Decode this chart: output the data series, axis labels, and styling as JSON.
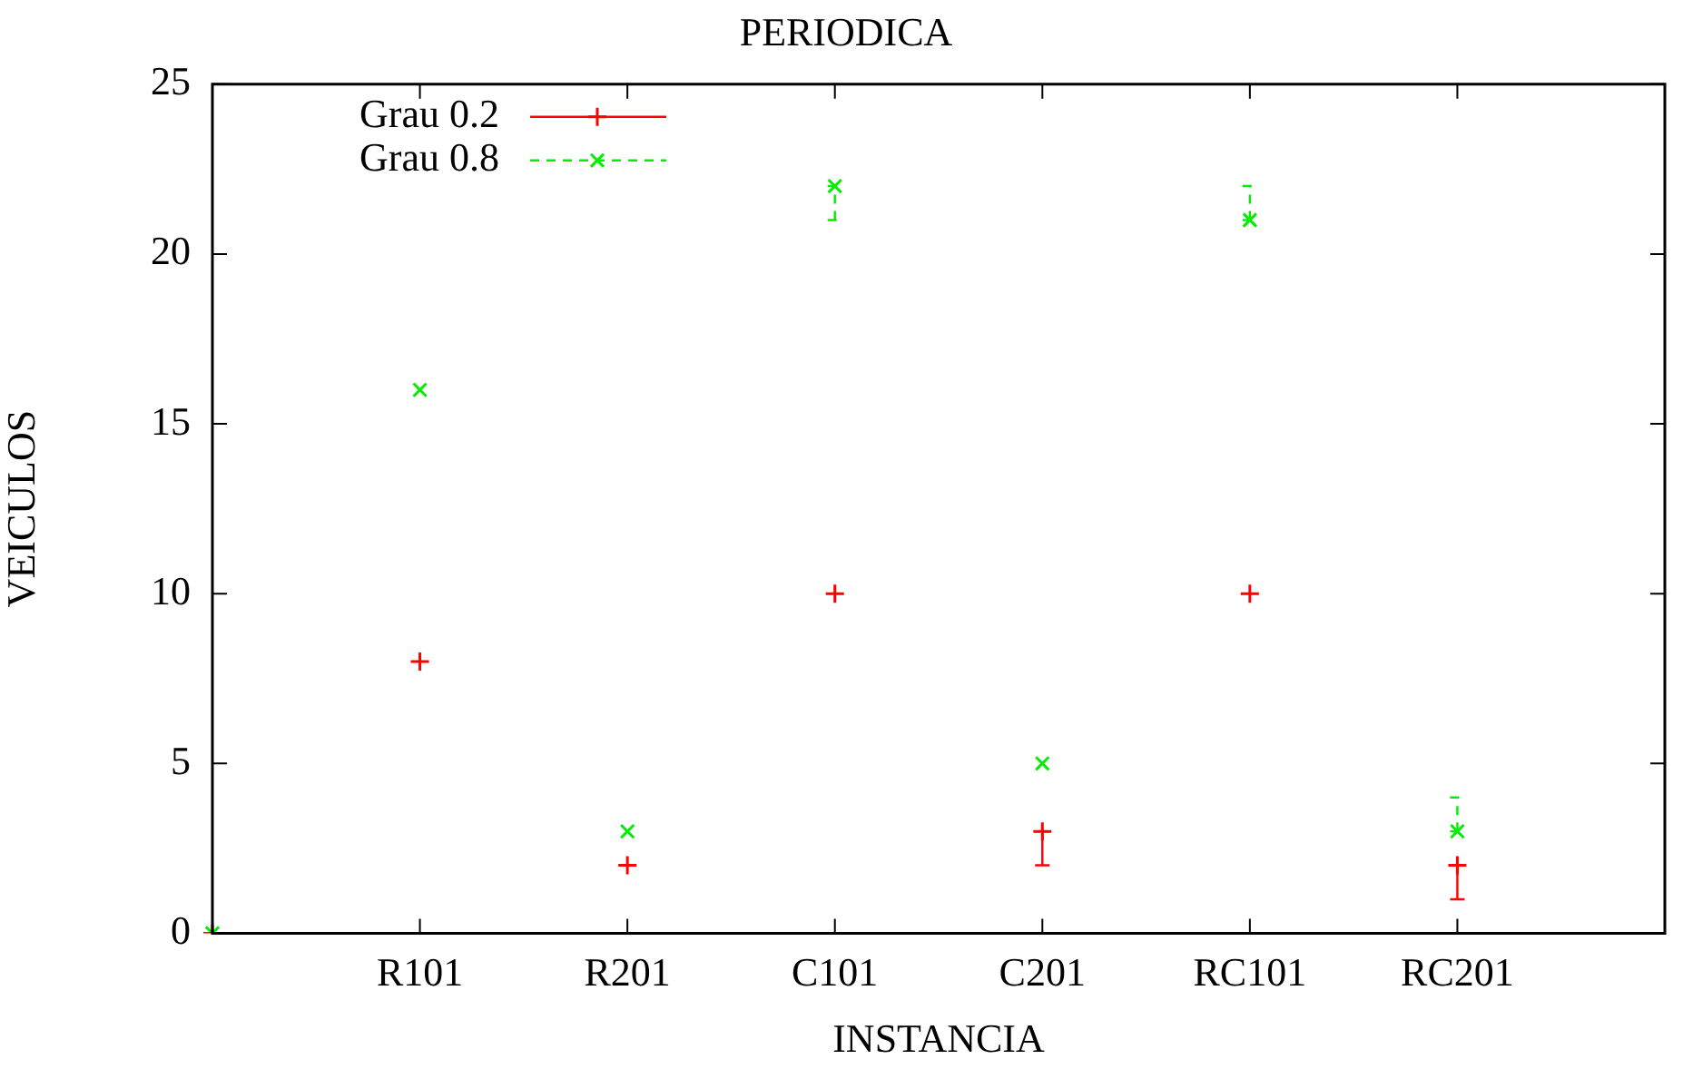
{
  "chart_data": {
    "type": "scatter",
    "title": "PERIODICA",
    "xlabel": "INSTANCIA",
    "ylabel": "VEICULOS",
    "categories": [
      null,
      "R101",
      "R201",
      "C101",
      "C201",
      "RC101",
      "RC201",
      null
    ],
    "series": [
      {
        "name": "Grau 0.2",
        "color": "#ff0000",
        "line_style": "solid",
        "values": [
          0,
          8,
          2,
          10,
          3,
          10,
          2,
          null
        ],
        "errors": [
          null,
          null,
          null,
          null,
          [
            2,
            3
          ],
          null,
          [
            1,
            2
          ],
          null
        ]
      },
      {
        "name": "Grau 0.8",
        "color": "#00ee00",
        "line_style": "dashed",
        "values": [
          0,
          16,
          3,
          22,
          5,
          21,
          3,
          null
        ],
        "errors": [
          null,
          null,
          null,
          [
            21,
            22
          ],
          null,
          [
            21,
            22
          ],
          [
            3,
            4
          ],
          null
        ]
      }
    ],
    "ylim": [
      0,
      25
    ],
    "yticks": [
      0,
      5,
      10,
      15,
      20,
      25
    ],
    "grid": false,
    "legend": "top left",
    "marker": "cross"
  }
}
